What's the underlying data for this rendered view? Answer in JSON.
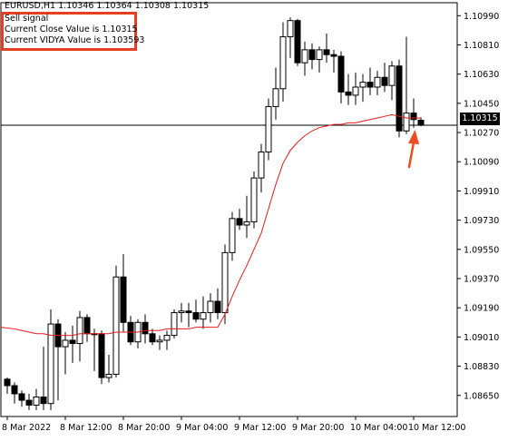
{
  "header": {
    "symbol_line": "EURUSD,H1  1.10346 1.10364 1.10308 1.10315"
  },
  "info": {
    "line1": "Sell signal",
    "line2": "Current Close Value is 1.10315",
    "line3": "Current VIDYA Value is 1.103593"
  },
  "price_tag": "1.10315",
  "colors": {
    "background": "#ffffff",
    "candle_up": "#ffffff",
    "candle_down": "#000000",
    "vidya_line": "#e41a1c",
    "annotation_box": "#e2401f",
    "arrow": "#f04a23"
  },
  "icons": {
    "arrow": "up-arrow-icon"
  },
  "chart_data": {
    "type": "candlestick",
    "symbol": "EURUSD",
    "timeframe": "H1",
    "ylim": [
      1.0852,
      1.1107
    ],
    "y_ticks": [
      "1.10990",
      "1.10810",
      "1.10630",
      "1.10450",
      "1.10270",
      "1.10090",
      "1.09910",
      "1.09730",
      "1.09550",
      "1.09370",
      "1.09190",
      "1.09010",
      "1.08830",
      "1.08650"
    ],
    "x_ticks": [
      {
        "label": "8 Mar 2022",
        "bar": 0
      },
      {
        "label": "8 Mar 12:00",
        "bar": 8
      },
      {
        "label": "8 Mar 20:00",
        "bar": 16
      },
      {
        "label": "9 Mar 04:00",
        "bar": 24
      },
      {
        "label": "9 Mar 12:00",
        "bar": 32
      },
      {
        "label": "9 Mar 20:00",
        "bar": 40
      },
      {
        "label": "10 Mar 04:00",
        "bar": 48
      },
      {
        "label": "10 Mar 12:00",
        "bar": 56
      }
    ],
    "horizontal_line": 1.10315,
    "series": [
      {
        "name": "EURUSD",
        "ohlc": [
          [
            1.0875,
            1.0876,
            1.0866,
            1.0871
          ],
          [
            1.0871,
            1.0873,
            1.086,
            1.0866
          ],
          [
            1.0866,
            1.0868,
            1.0858,
            1.0862
          ],
          [
            1.0862,
            1.0866,
            1.0856,
            1.0859
          ],
          [
            1.0859,
            1.0869,
            1.0856,
            1.0864
          ],
          [
            1.0864,
            1.0895,
            1.0856,
            1.086
          ],
          [
            1.086,
            1.0918,
            1.0856,
            1.0909
          ],
          [
            1.0909,
            1.0912,
            1.0862,
            1.0895
          ],
          [
            1.0895,
            1.0904,
            1.0878,
            1.0899
          ],
          [
            1.0899,
            1.0908,
            1.0885,
            1.0897
          ],
          [
            1.0897,
            1.0917,
            1.0886,
            1.0913
          ],
          [
            1.0913,
            1.0915,
            1.0898,
            1.0903
          ],
          [
            1.0903,
            1.0906,
            1.088,
            1.0903
          ],
          [
            1.0903,
            1.0905,
            1.0872,
            1.0876
          ],
          [
            1.0876,
            1.089,
            1.0873,
            1.0878
          ],
          [
            1.0878,
            1.0945,
            1.0876,
            1.0938
          ],
          [
            1.0938,
            1.0952,
            1.0904,
            1.091
          ],
          [
            1.091,
            1.0914,
            1.0896,
            1.0898
          ],
          [
            1.0898,
            1.0912,
            1.0894,
            1.091
          ],
          [
            1.091,
            1.0915,
            1.0897,
            1.0903
          ],
          [
            1.0903,
            1.0906,
            1.0896,
            1.0898
          ],
          [
            1.0898,
            1.0902,
            1.0893,
            1.0899
          ],
          [
            1.0899,
            1.0905,
            1.0893,
            1.0902
          ],
          [
            1.0902,
            1.0918,
            1.09,
            1.0916
          ],
          [
            1.0916,
            1.0922,
            1.091,
            1.0917
          ],
          [
            1.0917,
            1.0922,
            1.0907,
            1.0916
          ],
          [
            1.0916,
            1.0924,
            1.091,
            1.0912
          ],
          [
            1.0912,
            1.0926,
            1.0906,
            1.0916
          ],
          [
            1.0916,
            1.0928,
            1.091,
            1.0923
          ],
          [
            1.0923,
            1.0931,
            1.0912,
            1.0916
          ],
          [
            1.0916,
            1.0958,
            1.0909,
            1.0953
          ],
          [
            1.0953,
            1.0978,
            1.0948,
            1.0974
          ],
          [
            1.0974,
            1.098,
            1.0967,
            1.097
          ],
          [
            1.097,
            1.0988,
            1.0962,
            1.0972
          ],
          [
            1.0972,
            1.1003,
            1.0968,
            1.0999
          ],
          [
            1.0999,
            1.102,
            1.099,
            1.1015
          ],
          [
            1.1015,
            1.1048,
            1.101,
            1.1043
          ],
          [
            1.1043,
            1.1067,
            1.1035,
            1.1054
          ],
          [
            1.1054,
            1.1095,
            1.1046,
            1.1086
          ],
          [
            1.1086,
            1.1098,
            1.1073,
            1.1096
          ],
          [
            1.1096,
            1.1097,
            1.1068,
            1.107
          ],
          [
            1.107,
            1.1083,
            1.1062,
            1.1078
          ],
          [
            1.1078,
            1.1082,
            1.1066,
            1.1072
          ],
          [
            1.1072,
            1.108,
            1.1064,
            1.1078
          ],
          [
            1.1078,
            1.1088,
            1.107,
            1.1075
          ],
          [
            1.1075,
            1.1078,
            1.1064,
            1.1074
          ],
          [
            1.1074,
            1.1077,
            1.1045,
            1.1052
          ],
          [
            1.1052,
            1.1063,
            1.1044,
            1.105
          ],
          [
            1.105,
            1.1064,
            1.1044,
            1.1055
          ],
          [
            1.1055,
            1.1063,
            1.1046,
            1.1058
          ],
          [
            1.1058,
            1.1067,
            1.105,
            1.1055
          ],
          [
            1.1055,
            1.1065,
            1.105,
            1.1061
          ],
          [
            1.1061,
            1.107,
            1.1052,
            1.1056
          ],
          [
            1.1056,
            1.1071,
            1.1047,
            1.1068
          ],
          [
            1.1068,
            1.1072,
            1.1024,
            1.1028
          ],
          [
            1.1028,
            1.1086,
            1.1026,
            1.1039
          ],
          [
            1.1039,
            1.1048,
            1.103,
            1.1035
          ],
          [
            1.10346,
            1.10364,
            1.10308,
            1.10315
          ]
        ]
      },
      {
        "name": "VIDYA",
        "values": [
          1.0907,
          1.0906,
          1.0905,
          1.0904,
          1.0903,
          1.0903,
          1.0902,
          1.0902,
          1.0902,
          1.0902,
          1.0903,
          1.0903,
          1.0903,
          1.0903,
          1.0903,
          1.0904,
          1.0904,
          1.0904,
          1.0904,
          1.0905,
          1.0905,
          1.0905,
          1.0906,
          1.0906,
          1.0906,
          1.0906,
          1.0907,
          1.0907,
          1.0907,
          1.0907,
          1.0915,
          1.0926,
          1.0936,
          1.0945,
          1.0955,
          1.0965,
          1.098,
          1.0995,
          1.1008,
          1.1016,
          1.1021,
          1.1025,
          1.1028,
          1.103,
          1.1031,
          1.1032,
          1.1032,
          1.1033,
          1.1033,
          1.1034,
          1.1035,
          1.1036,
          1.1037,
          1.1038,
          1.1037,
          1.1036,
          1.1036,
          1.103593
        ]
      }
    ]
  }
}
